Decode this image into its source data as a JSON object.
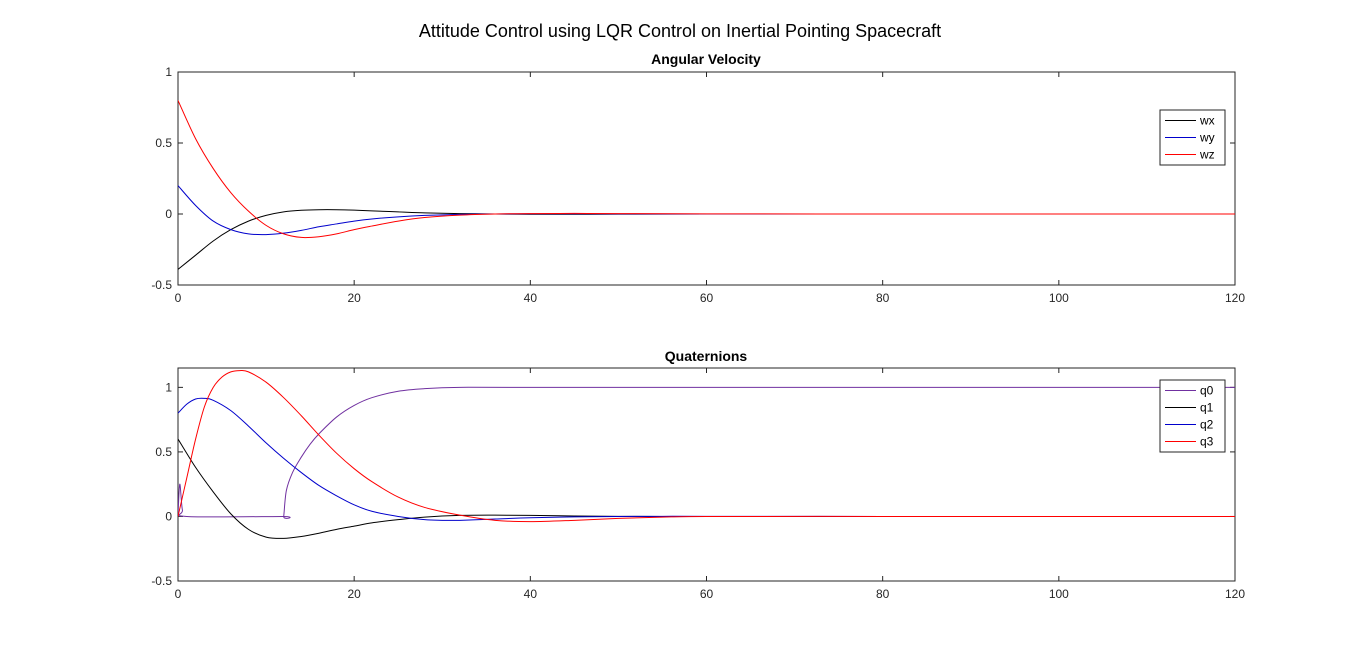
{
  "figure_title": "Attitude Control using LQR Control on Inertial Pointing Spacecraft",
  "chart_data": [
    {
      "type": "line",
      "title": "Angular Velocity",
      "xlabel": "",
      "ylabel": "",
      "xlim": [
        0,
        120
      ],
      "ylim": [
        -0.5,
        1
      ],
      "xticks": [
        "0",
        "20",
        "40",
        "60",
        "80",
        "100",
        "120"
      ],
      "yticks": [
        "-0.5",
        "0",
        "0.5",
        "1"
      ],
      "grid": false,
      "legend_position": "top-right",
      "series": [
        {
          "name": "wx",
          "color": "#000000",
          "x": [
            0,
            2,
            4,
            6,
            8,
            10,
            12,
            14,
            16,
            18,
            20,
            22,
            25,
            28,
            32,
            36,
            40,
            45,
            50,
            60,
            80,
            100,
            120
          ],
          "y": [
            -0.39,
            -0.29,
            -0.19,
            -0.11,
            -0.05,
            -0.01,
            0.015,
            0.026,
            0.03,
            0.03,
            0.027,
            0.022,
            0.015,
            0.008,
            0.003,
            0.0,
            -0.002,
            -0.002,
            -0.001,
            0,
            0,
            0,
            0
          ]
        },
        {
          "name": "wy",
          "color": "#0000cc",
          "x": [
            0,
            2,
            4,
            6,
            8,
            10,
            12,
            14,
            16,
            18,
            20,
            22,
            25,
            28,
            32,
            36,
            40,
            45,
            50,
            60,
            80,
            100,
            120
          ],
          "y": [
            0.2,
            0.06,
            -0.05,
            -0.11,
            -0.14,
            -0.145,
            -0.135,
            -0.115,
            -0.09,
            -0.07,
            -0.05,
            -0.035,
            -0.02,
            -0.01,
            -0.003,
            0.0,
            0.002,
            0.002,
            0.001,
            0,
            0,
            0,
            0
          ]
        },
        {
          "name": "wz",
          "color": "#ff0000",
          "x": [
            0,
            2,
            4,
            6,
            8,
            10,
            12,
            14,
            16,
            18,
            20,
            22,
            25,
            28,
            32,
            36,
            40,
            45,
            50,
            60,
            80,
            100,
            120
          ],
          "y": [
            0.8,
            0.53,
            0.32,
            0.15,
            0.02,
            -0.08,
            -0.14,
            -0.165,
            -0.16,
            -0.14,
            -0.11,
            -0.085,
            -0.05,
            -0.025,
            -0.008,
            0.0,
            0.003,
            0.004,
            0.003,
            0.001,
            0,
            0,
            0
          ]
        }
      ]
    },
    {
      "type": "line",
      "title": "Quaternions",
      "xlabel": "",
      "ylabel": "",
      "xlim": [
        0,
        120
      ],
      "ylim": [
        -0.5,
        1.15
      ],
      "xticks": [
        "0",
        "20",
        "40",
        "60",
        "80",
        "100",
        "120"
      ],
      "yticks": [
        "-0.5",
        "0",
        "0.5",
        "1"
      ],
      "grid": false,
      "legend_position": "top-right",
      "series": [
        {
          "name": "q0",
          "color": "#7030a0",
          "x": [
            0,
            0.2,
            0.5,
            1.0,
            11.9,
            12.0,
            12.3,
            13,
            14,
            15,
            16,
            18,
            20,
            22,
            25,
            28,
            32,
            40,
            60,
            120
          ],
          "y": [
            0,
            0.25,
            0.05,
            0,
            0,
            0.0,
            0.2,
            0.34,
            0.46,
            0.56,
            0.64,
            0.77,
            0.86,
            0.92,
            0.97,
            0.99,
            1.0,
            1.0,
            1.0,
            1.0
          ]
        },
        {
          "name": "q1",
          "color": "#000000",
          "x": [
            0,
            2,
            4,
            6,
            8,
            10,
            12,
            14,
            16,
            18,
            20,
            22,
            25,
            28,
            32,
            36,
            40,
            45,
            50,
            55,
            60,
            80,
            100,
            120
          ],
          "y": [
            0.6,
            0.38,
            0.19,
            0.02,
            -0.1,
            -0.16,
            -0.17,
            -0.155,
            -0.13,
            -0.1,
            -0.075,
            -0.05,
            -0.025,
            -0.005,
            0.008,
            0.01,
            0.008,
            0.004,
            0.001,
            0,
            0,
            0,
            0,
            0
          ]
        },
        {
          "name": "q2",
          "color": "#0000cc",
          "x": [
            0,
            1,
            2,
            3,
            4,
            6,
            8,
            10,
            12,
            14,
            16,
            18,
            20,
            22,
            25,
            28,
            30,
            32,
            36,
            40,
            45,
            50,
            55,
            60,
            80,
            100,
            120
          ],
          "y": [
            0.8,
            0.87,
            0.91,
            0.915,
            0.9,
            0.82,
            0.7,
            0.57,
            0.45,
            0.34,
            0.24,
            0.16,
            0.09,
            0.04,
            0.0,
            -0.025,
            -0.03,
            -0.03,
            -0.02,
            -0.01,
            -0.003,
            0.0,
            0.001,
            0.001,
            0,
            0,
            0
          ]
        },
        {
          "name": "q3",
          "color": "#ff0000",
          "x": [
            0,
            1,
            2,
            3,
            4,
            5,
            6,
            7,
            8,
            10,
            12,
            14,
            16,
            18,
            20,
            22,
            25,
            28,
            32,
            36,
            40,
            45,
            50,
            55,
            60,
            80,
            100,
            120
          ],
          "y": [
            0,
            0.3,
            0.6,
            0.85,
            1.0,
            1.08,
            1.12,
            1.13,
            1.12,
            1.04,
            0.92,
            0.78,
            0.63,
            0.49,
            0.37,
            0.27,
            0.15,
            0.07,
            0.01,
            -0.03,
            -0.04,
            -0.03,
            -0.015,
            -0.005,
            0.0,
            0,
            0,
            0
          ]
        }
      ]
    }
  ]
}
